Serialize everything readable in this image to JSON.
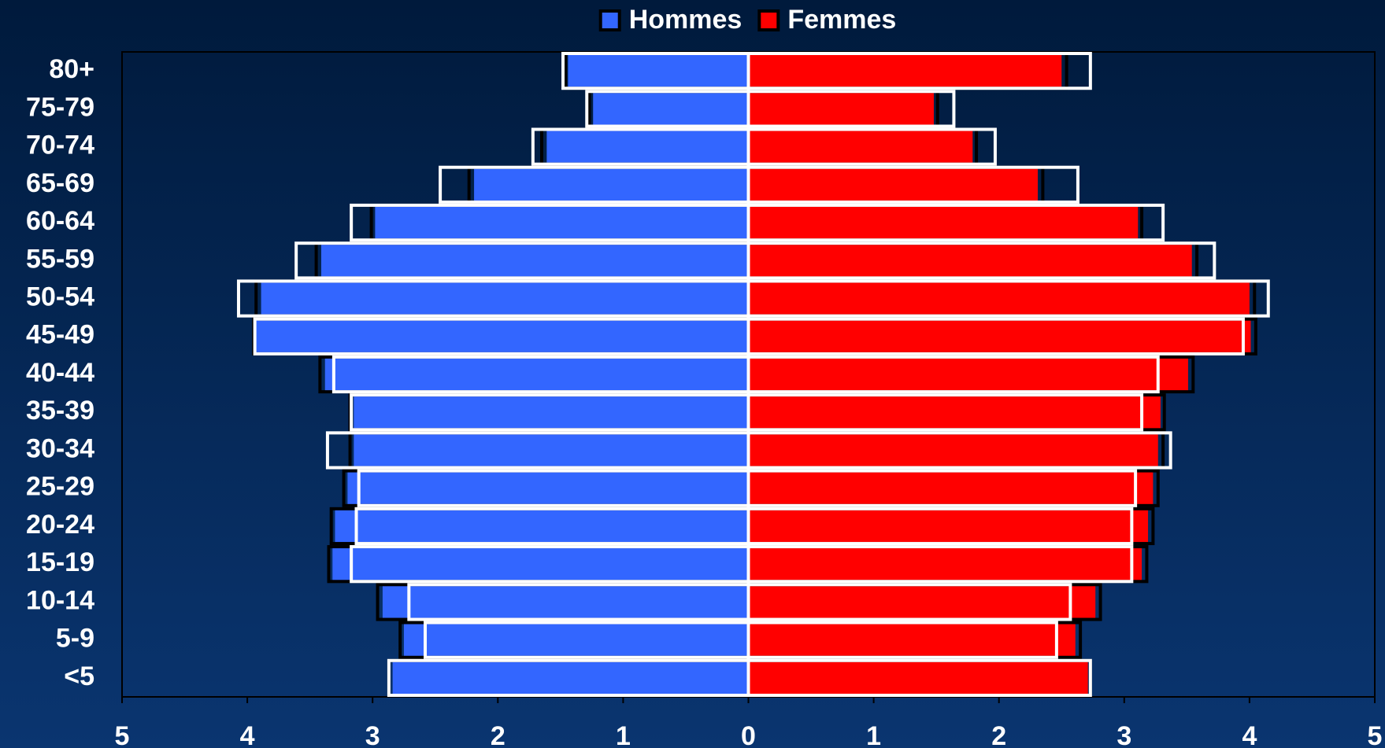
{
  "chart_data": {
    "type": "pyramid",
    "categories": [
      "80+",
      "75-79",
      "70-74",
      "65-69",
      "60-64",
      "55-59",
      "50-54",
      "45-49",
      "40-44",
      "35-39",
      "30-34",
      "25-29",
      "20-24",
      "15-19",
      "10-14",
      "5-9",
      "<5"
    ],
    "series": [
      {
        "name": "Hommes",
        "color": "#3366ff",
        "style": "fill",
        "values": [
          -1.44,
          -1.24,
          -1.61,
          -2.19,
          -2.98,
          -3.41,
          -3.89,
          -3.93,
          -3.38,
          -3.15,
          -3.15,
          -3.2,
          -3.3,
          -3.32,
          -2.92,
          -2.75,
          -2.84
        ]
      },
      {
        "name": "Femmes",
        "color": "#ff0000",
        "style": "fill",
        "values": [
          2.5,
          1.48,
          1.79,
          2.31,
          3.11,
          3.54,
          4.0,
          4.01,
          3.51,
          3.29,
          3.27,
          3.23,
          3.19,
          3.14,
          2.77,
          2.61,
          2.71
        ]
      },
      {
        "color": "#000000",
        "style": "outline",
        "values": [
          -1.46,
          -1.27,
          -1.65,
          -2.23,
          -3.01,
          -3.45,
          -3.93,
          -3.95,
          -3.42,
          -3.18,
          -3.18,
          -3.23,
          -3.33,
          -3.35,
          -2.96,
          -2.78,
          -2.87
        ]
      },
      {
        "color": "#000000",
        "style": "outline",
        "values": [
          2.54,
          1.51,
          1.82,
          2.35,
          3.14,
          3.58,
          4.04,
          4.05,
          3.55,
          3.32,
          3.31,
          3.27,
          3.23,
          3.18,
          2.81,
          2.65,
          2.73
        ]
      },
      {
        "color": "#ffffff",
        "style": "outline",
        "values": [
          -1.48,
          -1.29,
          -1.72,
          -2.46,
          -3.17,
          -3.61,
          -4.07,
          -3.94,
          -3.31,
          -3.17,
          -3.36,
          -3.11,
          -3.13,
          -3.17,
          -2.71,
          -2.58,
          -2.87
        ]
      },
      {
        "color": "#ffffff",
        "style": "outline",
        "values": [
          2.73,
          1.64,
          1.97,
          2.63,
          3.31,
          3.72,
          4.15,
          3.95,
          3.27,
          3.14,
          3.37,
          3.09,
          3.06,
          3.06,
          2.57,
          2.46,
          2.73
        ]
      }
    ],
    "xlim": [
      -5,
      5
    ],
    "xticks": [
      {
        "value": -5,
        "label": "5"
      },
      {
        "value": -4,
        "label": "4"
      },
      {
        "value": -3,
        "label": "3"
      },
      {
        "value": -2,
        "label": "2"
      },
      {
        "value": -1,
        "label": "1"
      },
      0,
      1,
      2,
      3,
      4,
      5
    ],
    "legend": "top"
  }
}
